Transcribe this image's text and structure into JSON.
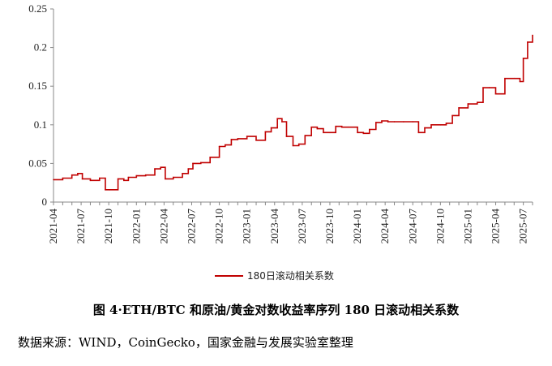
{
  "chart_data": {
    "type": "line",
    "title": "",
    "xlabel": "",
    "ylabel": "",
    "ylim": [
      0,
      0.25
    ],
    "yticks": [
      0,
      0.05,
      0.1,
      0.15,
      0.2,
      0.25
    ],
    "ytick_labels": [
      "0",
      "0.05",
      "0.1",
      "0.15",
      "0.2",
      "0.25"
    ],
    "xlim": [
      "2021-04",
      "2025-08"
    ],
    "x_categories": [
      "2021-04",
      "2021-07",
      "2021-10",
      "2022-01",
      "2022-04",
      "2022-07",
      "2022-10",
      "2023-01",
      "2023-04",
      "2023-07",
      "2023-10",
      "2024-01",
      "2024-04",
      "2024-07",
      "2024-10",
      "2025-01",
      "2025-04",
      "2025-07"
    ],
    "grid": false,
    "legend_position": "bottom-center",
    "series": [
      {
        "name": "180日滚动相关系数",
        "color": "#c00000",
        "x": [
          "2021-04-01",
          "2021-05-01",
          "2021-06-01",
          "2021-06-20",
          "2021-07-05",
          "2021-08-01",
          "2021-09-01",
          "2021-09-20",
          "2021-10-05",
          "2021-11-01",
          "2021-11-20",
          "2021-12-05",
          "2022-01-01",
          "2022-02-01",
          "2022-03-01",
          "2022-03-20",
          "2022-04-05",
          "2022-05-01",
          "2022-06-01",
          "2022-06-20",
          "2022-07-05",
          "2022-08-01",
          "2022-09-01",
          "2022-10-01",
          "2022-10-20",
          "2022-11-10",
          "2022-12-01",
          "2023-01-01",
          "2023-02-01",
          "2023-03-01",
          "2023-03-20",
          "2023-04-10",
          "2023-04-25",
          "2023-05-10",
          "2023-06-01",
          "2023-06-20",
          "2023-07-10",
          "2023-08-01",
          "2023-08-20",
          "2023-09-10",
          "2023-10-01",
          "2023-10-20",
          "2023-11-10",
          "2023-12-01",
          "2024-01-01",
          "2024-01-20",
          "2024-02-10",
          "2024-03-01",
          "2024-03-20",
          "2024-04-10",
          "2024-05-01",
          "2024-06-01",
          "2024-07-01",
          "2024-07-20",
          "2024-08-10",
          "2024-09-01",
          "2024-10-01",
          "2024-10-20",
          "2024-11-10",
          "2024-12-01",
          "2025-01-01",
          "2025-02-01",
          "2025-02-20",
          "2025-03-10",
          "2025-04-01",
          "2025-05-01",
          "2025-06-01",
          "2025-06-20",
          "2025-07-01",
          "2025-07-15",
          "2025-08-01"
        ],
        "values": [
          0.029,
          0.031,
          0.035,
          0.037,
          0.03,
          0.028,
          0.031,
          0.016,
          0.016,
          0.03,
          0.028,
          0.032,
          0.034,
          0.035,
          0.043,
          0.045,
          0.03,
          0.032,
          0.037,
          0.043,
          0.05,
          0.051,
          0.058,
          0.072,
          0.074,
          0.081,
          0.082,
          0.085,
          0.08,
          0.091,
          0.096,
          0.108,
          0.104,
          0.085,
          0.073,
          0.075,
          0.086,
          0.097,
          0.095,
          0.09,
          0.09,
          0.098,
          0.097,
          0.097,
          0.09,
          0.089,
          0.094,
          0.103,
          0.105,
          0.104,
          0.104,
          0.104,
          0.104,
          0.09,
          0.096,
          0.1,
          0.1,
          0.102,
          0.112,
          0.122,
          0.127,
          0.129,
          0.148,
          0.148,
          0.14,
          0.16,
          0.16,
          0.156,
          0.186,
          0.207,
          0.216
        ]
      }
    ]
  },
  "legend": {
    "label": "180日滚动相关系数"
  },
  "caption": "图 4·ETH/BTC 和原油/黄金对数收益率序列 180 日滚动相关系数",
  "source": "数据来源：WIND，CoinGecko，国家金融与发展实验室整理"
}
